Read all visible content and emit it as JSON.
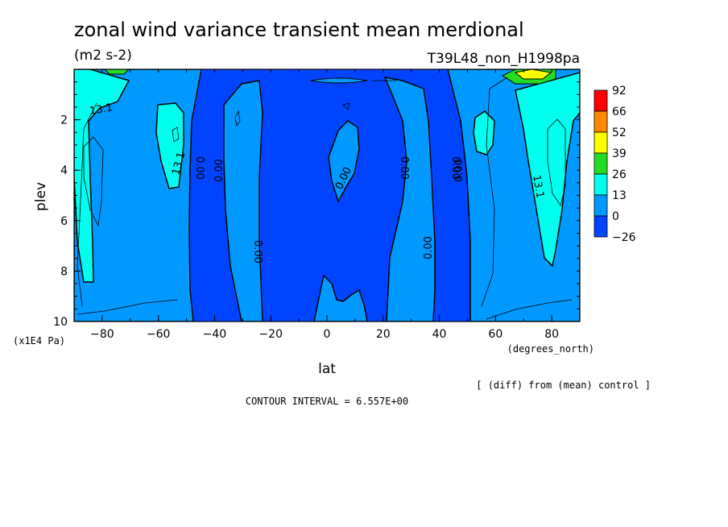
{
  "chart_data": {
    "type": "heatmap",
    "title": "zonal wind variance transient mean merdional",
    "units": "(m2 s-2)",
    "run_label": "T39L48_non_H1998pa",
    "xlabel": "lat",
    "x_units": "(degrees_north)",
    "ylabel": "plev",
    "y_units": "(x1E4 Pa)",
    "xlim": [
      -90,
      90
    ],
    "ylim": [
      10,
      0
    ],
    "x_ticks": [
      "-80",
      "-60",
      "-40",
      "-20",
      "0",
      "20",
      "40",
      "60",
      "80"
    ],
    "y_ticks": [
      "2",
      "4",
      "6",
      "8",
      "10"
    ],
    "colorbar_levels": [
      "92",
      "66",
      "52",
      "39",
      "26",
      "13",
      "0",
      "-26"
    ],
    "colorbar_colors": [
      "#ff0000",
      "#ff8800",
      "#ffff00",
      "#22dd22",
      "#00ffee",
      "#0099ff",
      "#0044ff"
    ],
    "contour_labels": [
      "13.1",
      "13.1",
      "13.1",
      "0.00",
      "0.00",
      "0.00",
      "0.00",
      "0.00",
      "0.00",
      "0.00",
      "0.00"
    ],
    "contour_interval": "CONTOUR INTERVAL = 6.557E+00",
    "note": "[ (diff) from (mean) control ]"
  }
}
